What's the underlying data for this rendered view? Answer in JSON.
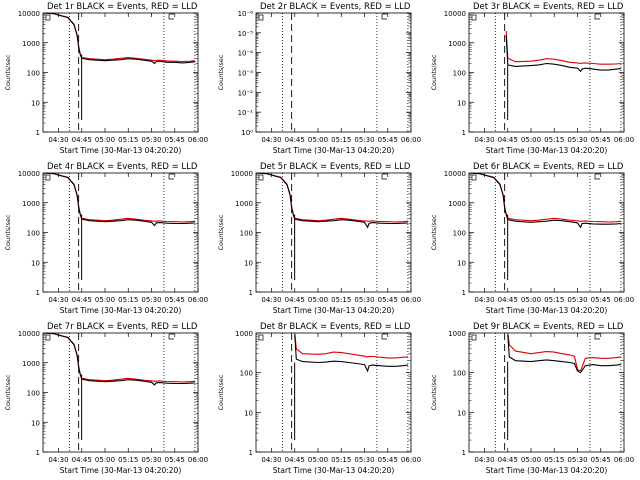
{
  "colors": {
    "events": "#000000",
    "lld": "#e00000",
    "background": "#ffffff"
  },
  "chart_data": [
    {
      "type": "line",
      "title": "Det 1r BLACK = Events, RED = LLD",
      "ylabel": "Counts/sec",
      "xlabel": "Start Time (30-Mar-13 04:20:20)",
      "xticks": [
        "04:30",
        "04:45",
        "05:00",
        "05:15",
        "05:30",
        "05:45",
        "06:00"
      ],
      "yticks": [
        "1",
        "10",
        "100",
        "1000",
        "10000"
      ],
      "ylim": [
        1,
        10000
      ],
      "yscale": "log",
      "xlim": [
        "04:20",
        "06:00"
      ],
      "dotted_lines": [
        "04:37",
        "05:38",
        "05:58"
      ],
      "dashed_lines": [
        "04:43"
      ],
      "x": [
        "04:20",
        "04:27",
        "04:30",
        "04:36",
        "04:40",
        "04:42",
        "04:43",
        "04:44",
        "04:45",
        "04:50",
        "05:00",
        "05:05",
        "05:10",
        "05:15",
        "05:20",
        "05:25",
        "05:30",
        "05:32",
        "05:33",
        "05:35",
        "05:40",
        "05:45",
        "05:50",
        "05:55",
        "05:58"
      ],
      "series": [
        {
          "name": "Events",
          "values": [
            10000,
            9500,
            8500,
            7000,
            4000,
            1800,
            700,
            400,
            300,
            270,
            250,
            260,
            270,
            290,
            280,
            260,
            240,
            200,
            230,
            240,
            220,
            220,
            210,
            220,
            230
          ]
        },
        {
          "name": "LLD",
          "values": [
            10000,
            9500,
            8600,
            7200,
            4200,
            1900,
            750,
            420,
            320,
            290,
            270,
            280,
            300,
            320,
            300,
            280,
            260,
            250,
            255,
            260,
            245,
            240,
            235,
            240,
            250
          ]
        }
      ]
    },
    {
      "type": "line",
      "title": "Det 2r BLACK = Events, RED = LLD",
      "ylabel": "Counts/sec",
      "xlabel": "Start Time (30-Mar-13 04:20:20)",
      "xticks": [
        "04:30",
        "04:45",
        "05:00",
        "05:15",
        "05:30",
        "05:45",
        "06:00"
      ],
      "yticks": [
        "10⁰",
        "10⁻¹",
        "10⁻²",
        "10⁻³",
        "10⁻⁴",
        "10⁻⁵",
        "10⁻⁶"
      ],
      "ylim": [
        1e-06,
        1
      ],
      "yscale": "log",
      "xlim": [
        "04:20",
        "06:00"
      ],
      "dotted_lines": [
        "04:37",
        "05:38",
        "05:58"
      ],
      "dashed_lines": [
        "04:43"
      ],
      "x": [],
      "series": []
    },
    {
      "type": "line",
      "title": "Det 3r BLACK = Events, RED = LLD",
      "ylabel": "Counts/sec",
      "xlabel": "Start Time (30-Mar-13 04:20:20)",
      "xticks": [
        "04:30",
        "04:45",
        "05:00",
        "05:15",
        "05:30",
        "05:45",
        "06:00"
      ],
      "yticks": [
        "1",
        "10",
        "100",
        "1000",
        "10000"
      ],
      "ylim": [
        1,
        10000
      ],
      "yscale": "log",
      "xlim": [
        "04:20",
        "06:00"
      ],
      "dotted_lines": [
        "04:37",
        "05:38",
        "05:58"
      ],
      "dashed_lines": [
        "04:43"
      ],
      "x": [
        "04:44",
        "04:45",
        "04:50",
        "05:00",
        "05:05",
        "05:10",
        "05:15",
        "05:20",
        "05:25",
        "05:30",
        "05:32",
        "05:33",
        "05:35",
        "05:40",
        "05:45",
        "05:50",
        "05:55",
        "05:58"
      ],
      "series": [
        {
          "name": "Events",
          "values": [
            1800,
            180,
            160,
            170,
            180,
            200,
            190,
            170,
            150,
            140,
            110,
            130,
            140,
            130,
            120,
            120,
            130,
            135
          ]
        },
        {
          "name": "LLD",
          "values": [
            2500,
            300,
            230,
            240,
            260,
            290,
            280,
            250,
            220,
            210,
            200,
            205,
            210,
            200,
            190,
            190,
            195,
            200
          ]
        }
      ]
    },
    {
      "type": "line",
      "title": "Det 4r BLACK = Events, RED = LLD",
      "ylabel": "Counts/sec",
      "xlabel": "Start Time (30-Mar-13 04:20:20)",
      "xticks": [
        "04:30",
        "04:45",
        "05:00",
        "05:15",
        "05:30",
        "05:45",
        "06:00"
      ],
      "yticks": [
        "1",
        "10",
        "100",
        "1000",
        "10000"
      ],
      "ylim": [
        1,
        10000
      ],
      "yscale": "log",
      "xlim": [
        "04:20",
        "06:00"
      ],
      "dotted_lines": [
        "04:37",
        "05:38",
        "05:58"
      ],
      "dashed_lines": [
        "04:43"
      ],
      "x": [
        "04:20",
        "04:27",
        "04:30",
        "04:36",
        "04:40",
        "04:42",
        "04:43",
        "04:44",
        "04:45",
        "04:50",
        "05:00",
        "05:05",
        "05:10",
        "05:15",
        "05:20",
        "05:25",
        "05:30",
        "05:32",
        "05:33",
        "05:35",
        "05:40",
        "05:45",
        "05:50",
        "05:55",
        "05:58"
      ],
      "series": [
        {
          "name": "Events",
          "values": [
            10000,
            9500,
            8500,
            7000,
            4000,
            1800,
            700,
            400,
            280,
            250,
            230,
            240,
            250,
            270,
            260,
            240,
            220,
            170,
            210,
            215,
            205,
            200,
            200,
            205,
            210
          ]
        },
        {
          "name": "LLD",
          "values": [
            10000,
            9500,
            8600,
            7200,
            4200,
            1900,
            750,
            420,
            300,
            270,
            250,
            260,
            280,
            300,
            280,
            260,
            245,
            240,
            240,
            245,
            235,
            230,
            225,
            230,
            240
          ]
        }
      ]
    },
    {
      "type": "line",
      "title": "Det 5r BLACK = Events, RED = LLD",
      "ylabel": "Counts/sec",
      "xlabel": "Start Time (30-Mar-13 04:20:20)",
      "xticks": [
        "04:30",
        "04:45",
        "05:00",
        "05:15",
        "05:30",
        "05:45",
        "06:00"
      ],
      "yticks": [
        "1",
        "10",
        "100",
        "1000",
        "10000"
      ],
      "ylim": [
        1,
        10000
      ],
      "yscale": "log",
      "xlim": [
        "04:20",
        "06:00"
      ],
      "dotted_lines": [
        "04:37",
        "05:38",
        "05:58"
      ],
      "dashed_lines": [
        "04:43"
      ],
      "x": [
        "04:20",
        "04:27",
        "04:30",
        "04:36",
        "04:40",
        "04:42",
        "04:43",
        "04:44",
        "04:45",
        "04:50",
        "05:00",
        "05:05",
        "05:10",
        "05:15",
        "05:20",
        "05:25",
        "05:30",
        "05:32",
        "05:33",
        "05:35",
        "05:40",
        "05:45",
        "05:50",
        "05:55",
        "05:58"
      ],
      "series": [
        {
          "name": "Events",
          "values": [
            10000,
            9500,
            8500,
            7000,
            4000,
            1800,
            700,
            400,
            280,
            250,
            230,
            240,
            250,
            270,
            260,
            240,
            220,
            150,
            200,
            215,
            205,
            200,
            200,
            205,
            210
          ]
        },
        {
          "name": "LLD",
          "values": [
            10000,
            9500,
            8600,
            7200,
            4200,
            1900,
            750,
            420,
            300,
            270,
            250,
            260,
            280,
            300,
            280,
            260,
            245,
            240,
            240,
            245,
            235,
            230,
            225,
            230,
            240
          ]
        }
      ]
    },
    {
      "type": "line",
      "title": "Det 6r BLACK = Events, RED = LLD",
      "ylabel": "Counts/sec",
      "xlabel": "Start Time (30-Mar-13 04:20:20)",
      "xticks": [
        "04:30",
        "04:45",
        "05:00",
        "05:15",
        "05:30",
        "05:45",
        "06:00"
      ],
      "yticks": [
        "1",
        "10",
        "100",
        "1000",
        "10000"
      ],
      "ylim": [
        1,
        10000
      ],
      "yscale": "log",
      "xlim": [
        "04:20",
        "06:00"
      ],
      "dotted_lines": [
        "04:37",
        "05:38",
        "05:58"
      ],
      "dashed_lines": [
        "04:43"
      ],
      "x": [
        "04:20",
        "04:27",
        "04:30",
        "04:36",
        "04:40",
        "04:42",
        "04:43",
        "04:44",
        "04:45",
        "04:50",
        "05:00",
        "05:05",
        "05:10",
        "05:15",
        "05:20",
        "05:25",
        "05:30",
        "05:32",
        "05:33",
        "05:35",
        "05:40",
        "05:45",
        "05:50",
        "05:55",
        "05:58"
      ],
      "series": [
        {
          "name": "Events",
          "values": [
            10000,
            9500,
            8500,
            7000,
            4000,
            1800,
            700,
            400,
            270,
            240,
            220,
            230,
            240,
            260,
            250,
            230,
            210,
            150,
            200,
            205,
            195,
            190,
            190,
            195,
            200
          ]
        },
        {
          "name": "LLD",
          "values": [
            10000,
            9500,
            8600,
            7200,
            4200,
            1900,
            750,
            420,
            300,
            270,
            250,
            260,
            280,
            300,
            280,
            260,
            245,
            240,
            240,
            245,
            235,
            230,
            225,
            230,
            240
          ]
        }
      ]
    },
    {
      "type": "line",
      "title": "Det 7r BLACK = Events, RED = LLD",
      "ylabel": "Counts/sec",
      "xlabel": "Start Time (30-Mar-13 04:20:20)",
      "xticks": [
        "04:30",
        "04:45",
        "05:00",
        "05:15",
        "05:30",
        "05:45",
        "06:00"
      ],
      "yticks": [
        "1",
        "10",
        "100",
        "1000",
        "10000"
      ],
      "ylim": [
        1,
        10000
      ],
      "yscale": "log",
      "xlim": [
        "04:20",
        "06:00"
      ],
      "dotted_lines": [
        "04:37",
        "05:38",
        "05:58"
      ],
      "dashed_lines": [
        "04:43"
      ],
      "x": [
        "04:20",
        "04:27",
        "04:30",
        "04:36",
        "04:40",
        "04:42",
        "04:43",
        "04:44",
        "04:45",
        "04:50",
        "05:00",
        "05:05",
        "05:10",
        "05:15",
        "05:20",
        "05:25",
        "05:30",
        "05:32",
        "05:33",
        "05:35",
        "05:40",
        "05:45",
        "05:50",
        "05:55",
        "05:58"
      ],
      "series": [
        {
          "name": "Events",
          "values": [
            10000,
            9500,
            8500,
            7000,
            4000,
            1800,
            700,
            400,
            280,
            250,
            230,
            240,
            250,
            270,
            260,
            240,
            220,
            180,
            210,
            215,
            205,
            200,
            200,
            205,
            210
          ]
        },
        {
          "name": "LLD",
          "values": [
            10000,
            9500,
            8600,
            7200,
            4200,
            1900,
            750,
            420,
            300,
            270,
            250,
            260,
            280,
            300,
            280,
            260,
            245,
            240,
            240,
            245,
            235,
            230,
            225,
            230,
            240
          ]
        }
      ]
    },
    {
      "type": "line",
      "title": "Det 8r BLACK = Events, RED = LLD",
      "ylabel": "Counts/sec",
      "xlabel": "Start Time (30-Mar-13 04:20:20)",
      "xticks": [
        "04:30",
        "04:45",
        "05:00",
        "05:15",
        "05:30",
        "05:45",
        "06:00"
      ],
      "yticks": [
        "1",
        "10",
        "100",
        "1000"
      ],
      "ylim": [
        1,
        1000
      ],
      "yscale": "log",
      "xlim": [
        "04:20",
        "06:00"
      ],
      "dotted_lines": [
        "04:37",
        "05:38",
        "05:58"
      ],
      "dashed_lines": [
        "04:43"
      ],
      "x": [
        "04:45",
        "04:46",
        "04:50",
        "05:00",
        "05:05",
        "05:10",
        "05:15",
        "05:20",
        "05:25",
        "05:30",
        "05:32",
        "05:33",
        "05:35",
        "05:40",
        "05:45",
        "05:50",
        "05:55",
        "05:58"
      ],
      "series": [
        {
          "name": "Events",
          "values": [
            900,
            220,
            190,
            180,
            185,
            195,
            190,
            180,
            170,
            160,
            110,
            150,
            155,
            150,
            145,
            145,
            150,
            155
          ]
        },
        {
          "name": "LLD",
          "values": [
            1000,
            400,
            300,
            290,
            300,
            330,
            320,
            300,
            280,
            260,
            250,
            255,
            255,
            245,
            235,
            235,
            245,
            250
          ]
        }
      ]
    },
    {
      "type": "line",
      "title": "Det 9r BLACK = Events, RED = LLD",
      "ylabel": "Counts/sec",
      "xlabel": "Start Time (30-Mar-13 04:20:20)",
      "xticks": [
        "04:30",
        "04:45",
        "05:00",
        "05:15",
        "05:30",
        "05:45",
        "06:00"
      ],
      "yticks": [
        "1",
        "10",
        "100",
        "1000"
      ],
      "ylim": [
        1,
        1000
      ],
      "yscale": "log",
      "xlim": [
        "04:20",
        "06:00"
      ],
      "dotted_lines": [
        "04:37",
        "05:38",
        "05:58"
      ],
      "dashed_lines": [
        "04:43"
      ],
      "x": [
        "04:45",
        "04:46",
        "04:50",
        "05:00",
        "05:05",
        "05:10",
        "05:15",
        "05:20",
        "05:25",
        "05:28",
        "05:30",
        "05:32",
        "05:35",
        "05:40",
        "05:45",
        "05:50",
        "05:55",
        "05:58"
      ],
      "series": [
        {
          "name": "Events",
          "values": [
            900,
            250,
            200,
            190,
            200,
            210,
            200,
            190,
            180,
            170,
            110,
            100,
            150,
            160,
            150,
            150,
            155,
            160
          ]
        },
        {
          "name": "LLD",
          "values": [
            1000,
            500,
            350,
            300,
            320,
            340,
            330,
            300,
            280,
            260,
            120,
            110,
            230,
            240,
            230,
            230,
            240,
            250
          ]
        }
      ]
    }
  ]
}
